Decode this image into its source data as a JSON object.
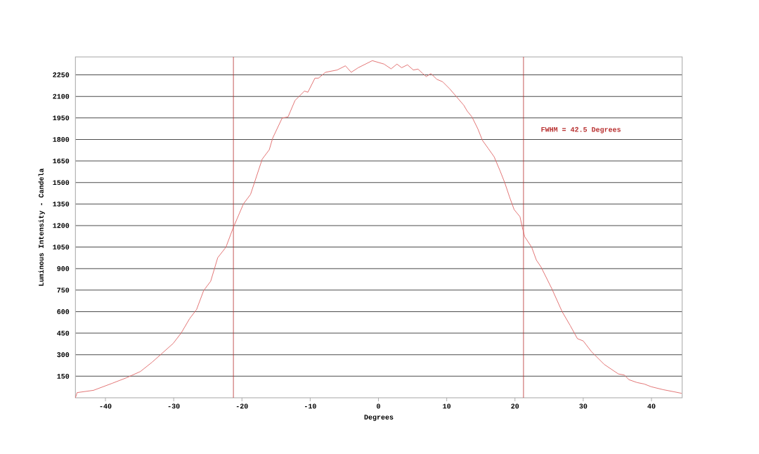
{
  "chart_data": {
    "type": "line",
    "xlabel": "Degrees",
    "ylabel": "Luminous Intensity - Candela",
    "annotations": [
      "FWHM = 42.5 Degrees"
    ],
    "x": [
      -44.4,
      -44.15,
      -41.75,
      -39.0,
      -36.94,
      -34.88,
      -33.16,
      -31.79,
      -30.07,
      -28.88,
      -27.67,
      -26.64,
      -25.61,
      -24.58,
      -23.55,
      -22.35,
      -21.32,
      -19.77,
      -18.74,
      -17.03,
      -16.0,
      -15.49,
      -14.11,
      -13.25,
      -12.22,
      -10.85,
      -10.34,
      -9.31,
      -8.79,
      -7.76,
      -6.05,
      -4.84,
      -3.99,
      -2.96,
      -0.9,
      0.82,
      1.85,
      2.71,
      3.4,
      4.25,
      5.11,
      5.8,
      6.49,
      7.0,
      7.68,
      8.55,
      9.4,
      10.43,
      11.46,
      12.49,
      13.0,
      13.7,
      14.55,
      15.24,
      16.1,
      16.95,
      17.82,
      18.5,
      19.19,
      19.88,
      20.73,
      21.07,
      21.42,
      22.45,
      23.13,
      23.82,
      25.37,
      26.91,
      28.11,
      29.15,
      30.0,
      31.2,
      33.09,
      35.15,
      36.0,
      36.7,
      37.9,
      38.93,
      39.96,
      41.67,
      43.39,
      44.42
    ],
    "series": [
      {
        "color": "#e06868",
        "values": [
          0,
          36,
          52,
          101,
          139,
          183,
          248,
          306,
          379,
          453,
          551,
          616,
          747,
          812,
          976,
          1049,
          1180,
          1352,
          1417,
          1663,
          1728,
          1810,
          1949,
          1957,
          2072,
          2137,
          2129,
          2227,
          2227,
          2268,
          2284,
          2313,
          2268,
          2300,
          2349,
          2325,
          2292,
          2325,
          2300,
          2320,
          2284,
          2290,
          2259,
          2238,
          2259,
          2219,
          2202,
          2153,
          2096,
          2039,
          1998,
          1957,
          1875,
          1793,
          1736,
          1679,
          1581,
          1499,
          1401,
          1311,
          1262,
          1189,
          1123,
          1049,
          960,
          911,
          763,
          600,
          502,
          412,
          396,
          322,
          232,
          166,
          159,
          126,
          106,
          96,
          77,
          57,
          41,
          31
        ]
      }
    ],
    "xlim": [
      -44.4,
      44.5
    ],
    "ylim": [
      0,
      2375
    ],
    "xticks": [
      -40,
      -30,
      -20,
      -10,
      0,
      10,
      20,
      30,
      40
    ],
    "yticks": [
      150,
      300,
      450,
      600,
      750,
      900,
      1050,
      1200,
      1350,
      1500,
      1650,
      1800,
      1950,
      2100,
      2250
    ],
    "grid": "y",
    "marker": "none",
    "line_style": "solid",
    "ref_lines": [
      {
        "axis": "x",
        "value": -21.25,
        "color": "#b83030"
      },
      {
        "axis": "x",
        "value": 21.25,
        "color": "#b83030"
      }
    ]
  }
}
